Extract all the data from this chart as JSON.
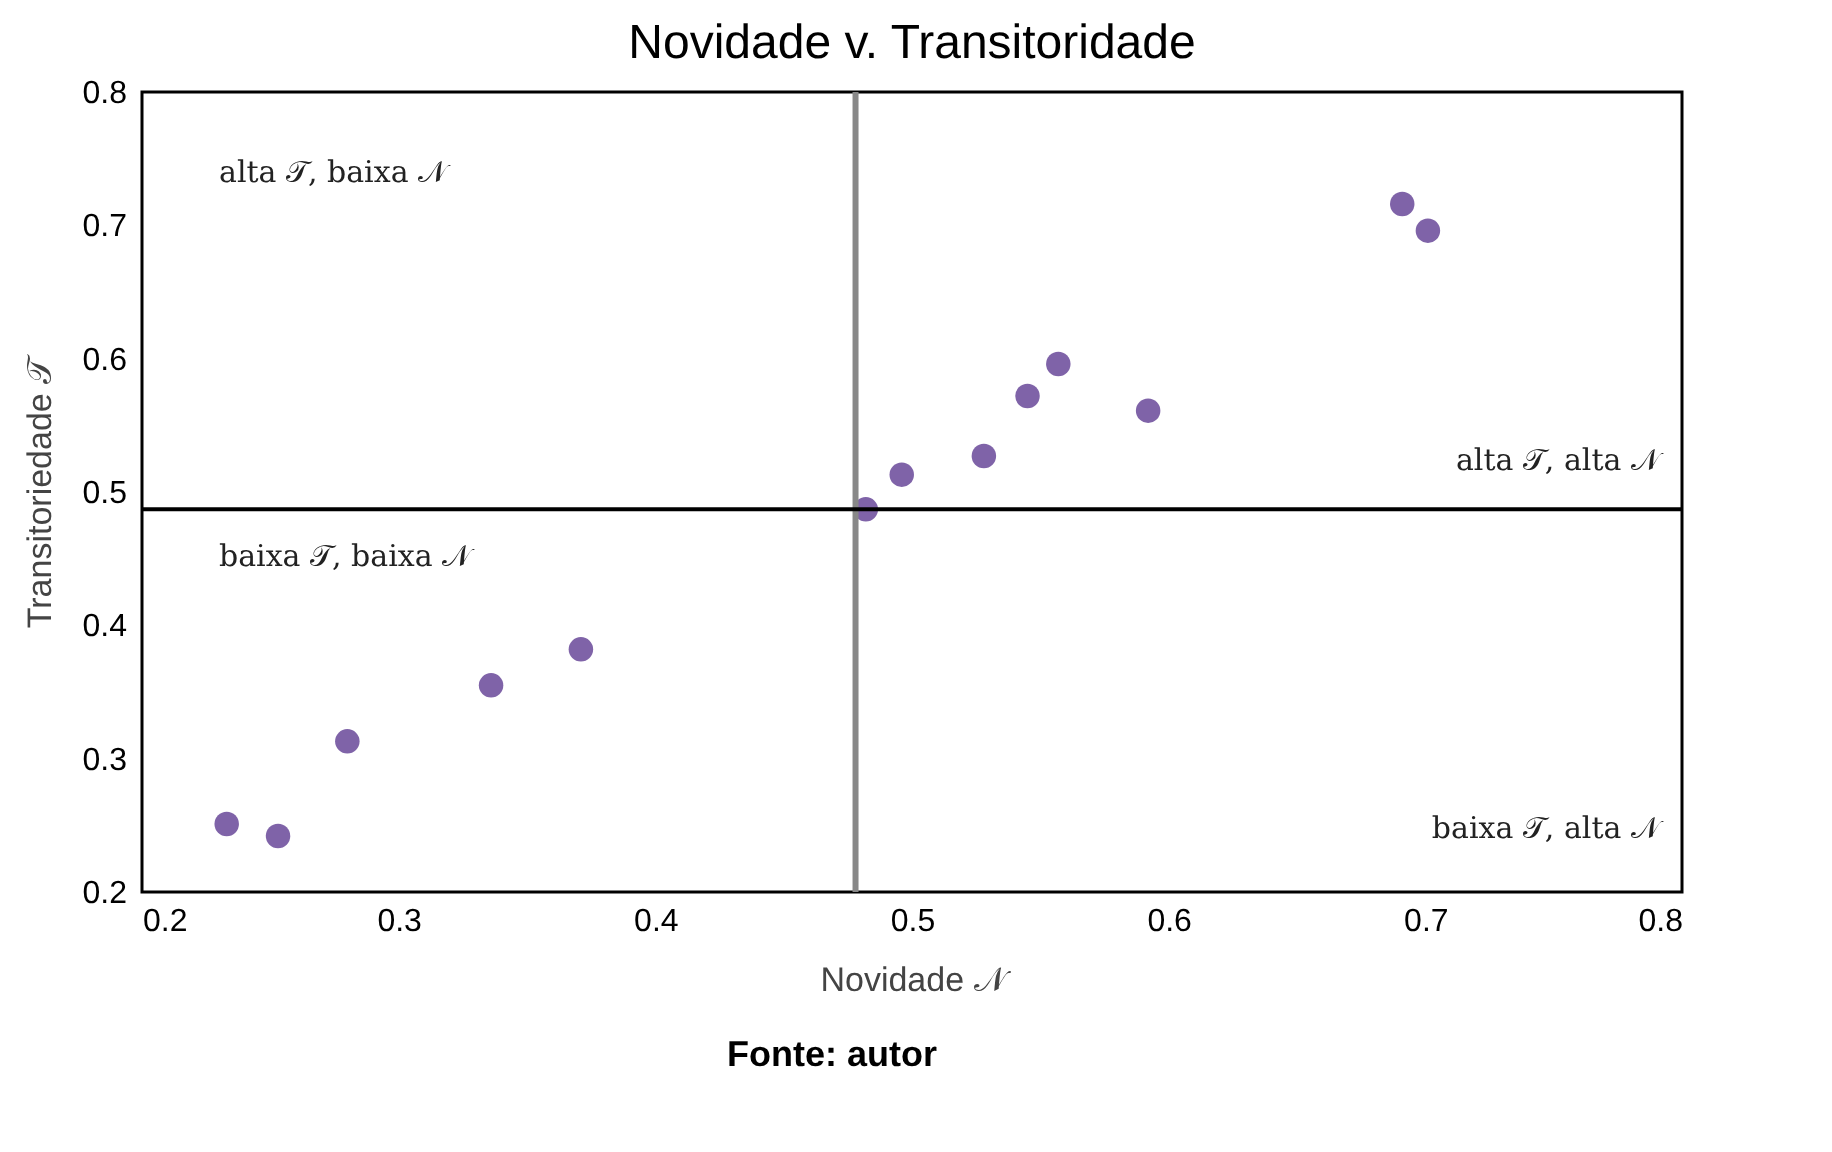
{
  "chart_data": {
    "type": "scatter",
    "title": "Novidade v. Transitoridade",
    "xlabel": "Novidade 𝒩",
    "ylabel": "Transitoriedade 𝒯",
    "x": [
      0.233,
      0.253,
      0.28,
      0.336,
      0.371,
      0.482,
      0.496,
      0.528,
      0.545,
      0.557,
      0.592,
      0.691,
      0.701
    ],
    "series": [
      {
        "color": "#7f63a8",
        "values": [
          0.251,
          0.242,
          0.313,
          0.355,
          0.382,
          0.487,
          0.513,
          0.527,
          0.572,
          0.596,
          0.561,
          0.716,
          0.696
        ]
      }
    ],
    "xlim": [
      0.2,
      0.8
    ],
    "ylim": [
      0.2,
      0.8
    ],
    "xticks": [
      0.2,
      0.3,
      0.4,
      0.5,
      0.6,
      0.7,
      0.8
    ],
    "yticks": [
      0.2,
      0.3,
      0.4,
      0.5,
      0.6,
      0.7,
      0.8
    ],
    "grid": false,
    "marker": "circle",
    "ref_lines": [
      {
        "axis": "x",
        "value": 0.478,
        "color": "#888888"
      },
      {
        "axis": "y",
        "value": 0.487,
        "color": "#000000"
      }
    ],
    "annotations": [
      "alta 𝒯, baixa 𝒩",
      "alta 𝒯, alta 𝒩",
      "baixa 𝒯, baixa 𝒩",
      "baixa 𝒯, alta 𝒩",
      "Fonte: autor"
    ]
  }
}
